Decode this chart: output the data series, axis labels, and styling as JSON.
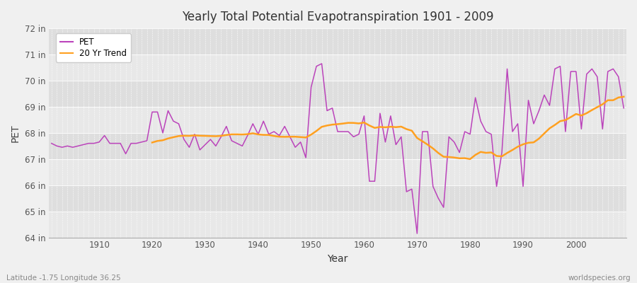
{
  "title": "Yearly Total Potential Evapotranspiration 1901 - 2009",
  "xlabel": "Year",
  "ylabel": "PET",
  "footnote_left": "Latitude -1.75 Longitude 36.25",
  "footnote_right": "worldspecies.org",
  "background_color": "#f0f0f0",
  "plot_bg_color": "#ebebeb",
  "pet_color": "#bb44bb",
  "trend_color": "#ffa020",
  "ylim": [
    64,
    72
  ],
  "yticks": [
    64,
    65,
    66,
    67,
    68,
    69,
    70,
    71,
    72
  ],
  "years": [
    1901,
    1902,
    1903,
    1904,
    1905,
    1906,
    1907,
    1908,
    1909,
    1910,
    1911,
    1912,
    1913,
    1914,
    1915,
    1916,
    1917,
    1918,
    1919,
    1920,
    1921,
    1922,
    1923,
    1924,
    1925,
    1926,
    1927,
    1928,
    1929,
    1930,
    1931,
    1932,
    1933,
    1934,
    1935,
    1936,
    1937,
    1938,
    1939,
    1940,
    1941,
    1942,
    1943,
    1944,
    1945,
    1946,
    1947,
    1948,
    1949,
    1950,
    1951,
    1952,
    1953,
    1954,
    1955,
    1956,
    1957,
    1958,
    1959,
    1960,
    1961,
    1962,
    1963,
    1964,
    1965,
    1966,
    1967,
    1968,
    1969,
    1970,
    1971,
    1972,
    1973,
    1974,
    1975,
    1976,
    1977,
    1978,
    1979,
    1980,
    1981,
    1982,
    1983,
    1984,
    1985,
    1986,
    1987,
    1988,
    1989,
    1990,
    1991,
    1992,
    1993,
    1994,
    1995,
    1996,
    1997,
    1998,
    1999,
    2000,
    2001,
    2002,
    2003,
    2004,
    2005,
    2006,
    2007,
    2008,
    2009
  ],
  "pet_values": [
    67.6,
    67.5,
    67.45,
    67.5,
    67.45,
    67.5,
    67.55,
    67.6,
    67.6,
    67.65,
    67.9,
    67.6,
    67.6,
    67.6,
    67.2,
    67.6,
    67.6,
    67.65,
    67.7,
    68.8,
    68.8,
    68.0,
    68.85,
    68.45,
    68.35,
    67.75,
    67.45,
    67.95,
    67.35,
    67.55,
    67.75,
    67.5,
    67.85,
    68.25,
    67.7,
    67.6,
    67.5,
    67.9,
    68.35,
    67.95,
    68.45,
    67.95,
    68.05,
    67.9,
    68.25,
    67.85,
    67.45,
    67.65,
    67.05,
    69.75,
    70.55,
    70.65,
    68.85,
    68.95,
    68.05,
    68.05,
    68.05,
    67.85,
    67.95,
    68.65,
    66.15,
    66.15,
    68.75,
    67.65,
    68.65,
    67.55,
    67.85,
    65.75,
    65.85,
    64.15,
    68.05,
    68.05,
    65.95,
    65.5,
    65.15,
    67.85,
    67.65,
    67.25,
    68.05,
    67.95,
    69.35,
    68.45,
    68.05,
    67.95,
    65.95,
    67.25,
    70.45,
    68.05,
    68.35,
    65.95,
    69.25,
    68.35,
    68.85,
    69.45,
    69.05,
    70.45,
    70.55,
    68.05,
    70.35,
    70.35,
    68.15,
    70.25,
    70.45,
    70.15,
    68.15,
    70.35,
    70.45,
    70.15,
    68.95
  ],
  "band_color_odd": "#e8e8e8",
  "band_color_even": "#dedede"
}
